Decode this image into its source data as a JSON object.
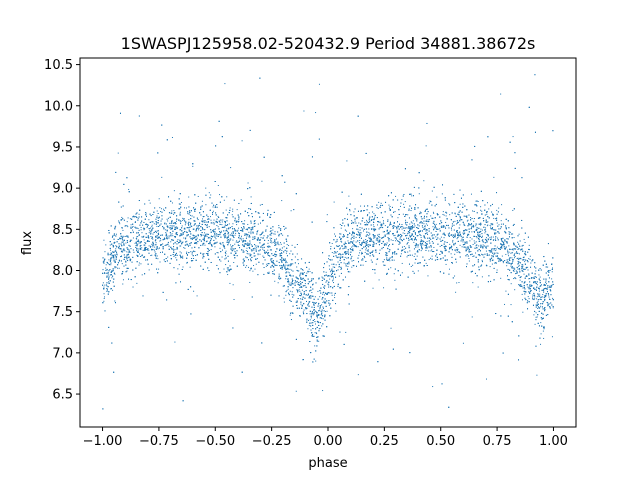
{
  "chart_data": {
    "type": "scatter",
    "title": "1SWASPJ125958.02-520432.9 Period 34881.38672s",
    "xlabel": "phase",
    "ylabel": "flux",
    "xlim": [
      -1.1,
      1.1
    ],
    "ylim": [
      6.1,
      10.58
    ],
    "xticks": [
      -1.0,
      -0.75,
      -0.5,
      -0.25,
      0.0,
      0.25,
      0.5,
      0.75,
      1.0
    ],
    "xtick_labels": [
      "−1.00",
      "−0.75",
      "−0.50",
      "−0.25",
      "0.00",
      "0.25",
      "0.50",
      "0.75",
      "1.00"
    ],
    "yticks": [
      6.5,
      7.0,
      7.5,
      8.0,
      8.5,
      9.0,
      9.5,
      10.0,
      10.5
    ],
    "ytick_labels": [
      "6.5",
      "7.0",
      "7.5",
      "8.0",
      "8.5",
      "9.0",
      "9.5",
      "10.0",
      "10.5"
    ],
    "grid": false,
    "color": "#1f77b4",
    "series": [
      {
        "phase": [
          -1.0,
          -0.95,
          -0.9,
          -0.85,
          -0.8,
          -0.75,
          -0.7,
          -0.65,
          -0.6,
          -0.55,
          -0.5,
          -0.45,
          -0.4,
          -0.35,
          -0.3,
          -0.25,
          -0.2,
          -0.15,
          -0.1,
          -0.05,
          0.0,
          0.05,
          0.1,
          0.15,
          0.2,
          0.25,
          0.3,
          0.35,
          0.4,
          0.45,
          0.5,
          0.55,
          0.6,
          0.65,
          0.7,
          0.75,
          0.8,
          0.85,
          0.9,
          0.95,
          1.0
        ],
        "flux_median": [
          7.9,
          8.2,
          8.3,
          8.35,
          8.4,
          8.42,
          8.45,
          8.45,
          8.45,
          8.45,
          8.42,
          8.4,
          8.4,
          8.38,
          8.35,
          8.3,
          8.1,
          7.9,
          7.7,
          7.4,
          7.8,
          8.25,
          8.35,
          8.38,
          8.4,
          8.42,
          8.45,
          8.45,
          8.45,
          8.42,
          8.42,
          8.42,
          8.42,
          8.4,
          8.4,
          8.35,
          8.25,
          8.1,
          7.9,
          7.6,
          7.9
        ]
      }
    ]
  }
}
